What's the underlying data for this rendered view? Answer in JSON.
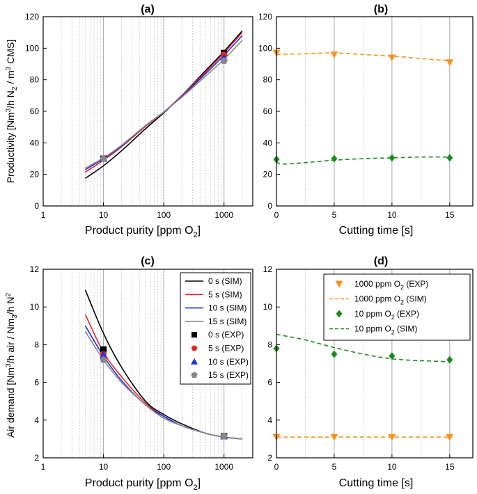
{
  "chart_data": [
    {
      "panel": "a",
      "title": "(a)",
      "type": "line",
      "xscale": "log",
      "xlim": [
        1,
        3000
      ],
      "ylim": [
        0,
        120
      ],
      "xticks": [
        1,
        10,
        100,
        1000
      ],
      "xtick_labels": [
        "1",
        "10",
        "100",
        "1000"
      ],
      "yticks": [
        0,
        20,
        40,
        60,
        80,
        100,
        120
      ],
      "ytick_labels": [
        "0",
        "20",
        "40",
        "60",
        "80",
        "100",
        "120"
      ],
      "xlabel": "Product purity [ppm O",
      "xlabel_sub": "2",
      "xlabel_end": "]",
      "ylabel_parts": [
        "Productivity [Nm",
        "3",
        "/h N",
        "2",
        " / m",
        "3",
        " CMS]"
      ],
      "series": [
        {
          "name": "0 s (SIM)",
          "kind": "line",
          "color": "#000000",
          "x": [
            5,
            10,
            20,
            50,
            100,
            200,
            500,
            1000,
            2000
          ],
          "y": [
            17.5,
            25.5,
            35,
            49,
            59,
            70,
            86,
            98,
            111
          ]
        },
        {
          "name": "5 s (SIM)",
          "kind": "line",
          "color": "#e8231e",
          "x": [
            5,
            10,
            20,
            50,
            100,
            200,
            500,
            1000,
            2000
          ],
          "y": [
            21.5,
            29,
            37.5,
            50.5,
            59.5,
            70,
            85,
            97,
            110
          ]
        },
        {
          "name": "10 s (SIM)",
          "kind": "line",
          "color": "#1f2fe8",
          "x": [
            5,
            10,
            20,
            50,
            100,
            200,
            500,
            1000,
            2000
          ],
          "y": [
            23,
            30,
            38,
            51,
            59.5,
            69.5,
            84,
            95.5,
            108
          ]
        },
        {
          "name": "15 s (SIM)",
          "kind": "line",
          "color": "#888888",
          "x": [
            5,
            10,
            20,
            50,
            100,
            200,
            500,
            1000,
            2000
          ],
          "y": [
            24,
            30.5,
            38.5,
            51,
            59.5,
            69,
            82.5,
            93,
            105
          ]
        },
        {
          "name": "0 s (EXP)",
          "kind": "square",
          "color": "#000000",
          "x": [
            10,
            1000
          ],
          "y": [
            30,
            97
          ]
        },
        {
          "name": "5 s (EXP)",
          "kind": "circle",
          "color": "#e8231e",
          "x": [
            10,
            1000
          ],
          "y": [
            30,
            96
          ]
        },
        {
          "name": "10 s (EXP)",
          "kind": "triangle-up",
          "color": "#1f2fe8",
          "x": [
            10,
            1000
          ],
          "y": [
            30,
            94
          ]
        },
        {
          "name": "15 s (EXP)",
          "kind": "pentagon",
          "color": "#888888",
          "x": [
            10,
            1000
          ],
          "y": [
            30,
            92
          ]
        }
      ]
    },
    {
      "panel": "b",
      "title": "(b)",
      "type": "line",
      "xscale": "linear",
      "xlim": [
        0,
        17
      ],
      "ylim": [
        0,
        120
      ],
      "xticks": [
        0,
        5,
        10,
        15
      ],
      "xtick_labels": [
        "0",
        "5",
        "10",
        "15"
      ],
      "yticks": [
        0,
        20,
        40,
        60,
        80,
        100,
        120
      ],
      "ytick_labels": [
        "0",
        "20",
        "40",
        "60",
        "80",
        "100",
        "120"
      ],
      "xlabel": "Cutting time [s]",
      "series": [
        {
          "name": "1000 ppm O2 (SIM)",
          "kind": "dashed",
          "color": "#f7931e",
          "x": [
            0,
            2.5,
            5,
            7.5,
            10,
            12.5,
            15
          ],
          "y": [
            96,
            96.5,
            97,
            96,
            95,
            93.5,
            92
          ]
        },
        {
          "name": "10 ppm O2 (SIM)",
          "kind": "dashed",
          "color": "#1b8a1b",
          "x": [
            0,
            0.5,
            2.5,
            5,
            7.5,
            10,
            12.5,
            15
          ],
          "y": [
            28,
            26.5,
            27.5,
            29,
            30,
            30.5,
            31,
            31
          ]
        },
        {
          "name": "1000 ppm O2 (EXP)",
          "kind": "triangle-down",
          "color": "#f7931e",
          "x": [
            0,
            5,
            10,
            15
          ],
          "y": [
            97,
            96,
            94,
            91
          ]
        },
        {
          "name": "10 ppm O2 (EXP)",
          "kind": "diamond",
          "color": "#1b8a1b",
          "x": [
            0,
            5,
            10,
            15
          ],
          "y": [
            29.5,
            30,
            30.5,
            30.5
          ]
        }
      ]
    },
    {
      "panel": "c",
      "title": "(c)",
      "type": "line",
      "xscale": "log",
      "xlim": [
        1,
        3000
      ],
      "ylim": [
        2,
        12
      ],
      "xticks": [
        1,
        10,
        100,
        1000
      ],
      "xtick_labels": [
        "1",
        "10",
        "100",
        "1000"
      ],
      "yticks": [
        2,
        4,
        6,
        8,
        10,
        12
      ],
      "ytick_labels": [
        "2",
        "4",
        "6",
        "8",
        "10",
        "12"
      ],
      "xlabel": "Product purity [ppm O",
      "xlabel_sub": "2",
      "xlabel_end": "]",
      "ylabel_parts": [
        "Air demand [Nm",
        "3",
        "/h air / Nm",
        "3",
        "/h N",
        "2"
      ],
      "legend": [
        "0 s (SIM)",
        "5 s (SIM)",
        "10 s (SIM)",
        "15 s (SIM)",
        "0 s (EXP)",
        "5 s (EXP)",
        "10 s (EXP)",
        "15 s (EXP)"
      ],
      "series": [
        {
          "name": "0 s (SIM)",
          "kind": "line",
          "color": "#000000",
          "x": [
            5,
            10,
            20,
            50,
            100,
            200,
            500,
            1000,
            2000
          ],
          "y": [
            10.9,
            8.6,
            6.8,
            5.0,
            4.3,
            3.8,
            3.3,
            3.1,
            3.0
          ]
        },
        {
          "name": "5 s (SIM)",
          "kind": "line",
          "color": "#e8231e",
          "x": [
            5,
            10,
            20,
            50,
            100,
            200,
            500,
            1000,
            2000
          ],
          "y": [
            9.6,
            7.6,
            6.3,
            4.9,
            4.2,
            3.7,
            3.3,
            3.1,
            3.0
          ]
        },
        {
          "name": "10 s (SIM)",
          "kind": "line",
          "color": "#1f2fe8",
          "x": [
            5,
            10,
            20,
            50,
            100,
            200,
            500,
            1000,
            2000
          ],
          "y": [
            9.0,
            7.4,
            6.1,
            4.8,
            4.2,
            3.7,
            3.3,
            3.1,
            3.0
          ]
        },
        {
          "name": "15 s (SIM)",
          "kind": "line",
          "color": "#888888",
          "x": [
            5,
            10,
            20,
            50,
            100,
            200,
            500,
            1000,
            2000
          ],
          "y": [
            8.7,
            7.2,
            6.0,
            4.8,
            4.1,
            3.7,
            3.3,
            3.1,
            3.0
          ]
        },
        {
          "name": "0 s (EXP)",
          "kind": "square",
          "color": "#000000",
          "x": [
            10,
            1000
          ],
          "y": [
            7.75,
            3.15
          ]
        },
        {
          "name": "5 s (EXP)",
          "kind": "circle",
          "color": "#e8231e",
          "x": [
            10,
            1000
          ],
          "y": [
            7.5,
            3.15
          ]
        },
        {
          "name": "10 s (EXP)",
          "kind": "triangle-up",
          "color": "#1f2fe8",
          "x": [
            10,
            1000
          ],
          "y": [
            7.45,
            3.15
          ]
        },
        {
          "name": "15 s (EXP)",
          "kind": "pentagon",
          "color": "#888888",
          "x": [
            10,
            1000
          ],
          "y": [
            7.2,
            3.15
          ]
        }
      ]
    },
    {
      "panel": "d",
      "title": "(d)",
      "type": "line",
      "xscale": "linear",
      "xlim": [
        0,
        17
      ],
      "ylim": [
        2,
        12
      ],
      "xticks": [
        0,
        5,
        10,
        15
      ],
      "xtick_labels": [
        "0",
        "5",
        "10",
        "15"
      ],
      "yticks": [
        2,
        4,
        6,
        8,
        10,
        12
      ],
      "ytick_labels": [
        "2",
        "4",
        "6",
        "8",
        "10",
        "12"
      ],
      "xlabel": "Cutting time [s]",
      "legend": [
        {
          "pre": "1000 ppm O",
          "sub": "2",
          "post": " (EXP)"
        },
        {
          "pre": "1000 ppm O",
          "sub": "2",
          "post": " (SIM)"
        },
        {
          "pre": "10 ppm O",
          "sub": "2",
          "post": " (EXP)"
        },
        {
          "pre": "10 ppm O",
          "sub": "2",
          "post": " (SIM)"
        }
      ],
      "series": [
        {
          "name": "1000 ppm O2 (SIM)",
          "kind": "dashed",
          "color": "#f7931e",
          "x": [
            0,
            5,
            10,
            15
          ],
          "y": [
            3.1,
            3.1,
            3.1,
            3.1
          ]
        },
        {
          "name": "10 ppm O2 (SIM)",
          "kind": "dashed",
          "color": "#1b8a1b",
          "x": [
            0,
            2.5,
            5,
            7.5,
            10,
            12.5,
            15
          ],
          "y": [
            8.55,
            8.25,
            7.85,
            7.5,
            7.25,
            7.15,
            7.1
          ]
        },
        {
          "name": "1000 ppm O2 (EXP)",
          "kind": "triangle-down",
          "color": "#f7931e",
          "x": [
            0,
            5,
            10,
            15
          ],
          "y": [
            3.1,
            3.1,
            3.1,
            3.1
          ]
        },
        {
          "name": "10 ppm O2 (EXP)",
          "kind": "diamond",
          "color": "#1b8a1b",
          "x": [
            0,
            5,
            10,
            15
          ],
          "y": [
            7.8,
            7.5,
            7.4,
            7.2
          ]
        }
      ]
    }
  ]
}
